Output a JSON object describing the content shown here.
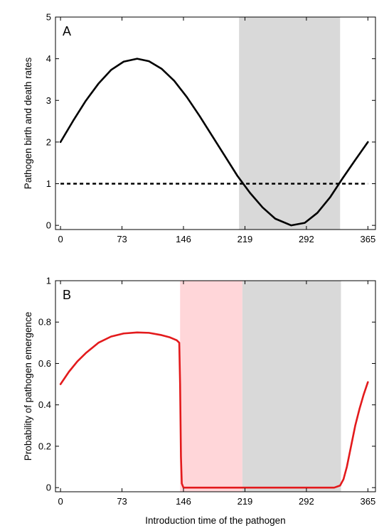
{
  "chart_data": [
    {
      "type": "line",
      "panel_label": "A",
      "ylabel": "Pathogen birth and death rates",
      "xlabel": "",
      "xlim": [
        -6,
        374
      ],
      "ylim": [
        -0.1,
        5
      ],
      "xticks": [
        0,
        73,
        146,
        219,
        292,
        365
      ],
      "yticks": [
        0,
        1,
        2,
        3,
        4,
        5
      ],
      "shaded_regions": [
        {
          "x_start": 212,
          "x_end": 332,
          "color": "#d9d9d9"
        }
      ],
      "series": [
        {
          "style": "solid",
          "color": "#000000",
          "x": [
            0,
            15,
            30,
            45,
            60,
            75,
            91,
            105,
            120,
            135,
            150,
            165,
            180,
            195,
            210,
            225,
            240,
            255,
            274,
            290,
            305,
            320,
            335,
            350,
            365
          ],
          "y": [
            2.0,
            2.51,
            2.99,
            3.4,
            3.73,
            3.93,
            4.0,
            3.94,
            3.76,
            3.47,
            3.08,
            2.63,
            2.15,
            1.67,
            1.19,
            0.78,
            0.43,
            0.16,
            0.0,
            0.06,
            0.3,
            0.67,
            1.13,
            1.57,
            2.0
          ]
        },
        {
          "style": "dashed",
          "color": "#000000",
          "x": [
            0,
            365
          ],
          "y": [
            1,
            1
          ]
        }
      ]
    },
    {
      "type": "line",
      "panel_label": "B",
      "ylabel": "Probability of pathogen emergence",
      "xlabel": "Introduction time of the pathogen",
      "xlim": [
        -6,
        374
      ],
      "ylim": [
        -0.02,
        1
      ],
      "xticks": [
        0,
        73,
        146,
        219,
        292,
        365
      ],
      "yticks": [
        0,
        0.2,
        0.4,
        0.6,
        0.8,
        1
      ],
      "shaded_regions": [
        {
          "x_start": 142,
          "x_end": 216,
          "color": "#ffd6d9"
        },
        {
          "x_start": 216,
          "x_end": 333,
          "color": "#d9d9d9"
        }
      ],
      "series": [
        {
          "style": "solid",
          "color": "#e31a1c",
          "x": [
            0,
            10,
            20,
            30,
            45,
            60,
            75,
            91,
            105,
            120,
            130,
            138,
            141,
            142,
            143,
            144,
            146,
            160,
            190,
            220,
            250,
            280,
            310,
            325,
            332,
            336,
            340,
            345,
            350,
            355,
            360,
            365
          ],
          "y": [
            0.5,
            0.56,
            0.61,
            0.65,
            0.7,
            0.73,
            0.745,
            0.75,
            0.748,
            0.737,
            0.726,
            0.712,
            0.7,
            0.5,
            0.15,
            0.02,
            0.0,
            0.0,
            0.0,
            0.0,
            0.0,
            0.0,
            0.0,
            0.0,
            0.01,
            0.04,
            0.1,
            0.2,
            0.3,
            0.38,
            0.45,
            0.51
          ]
        }
      ]
    }
  ]
}
